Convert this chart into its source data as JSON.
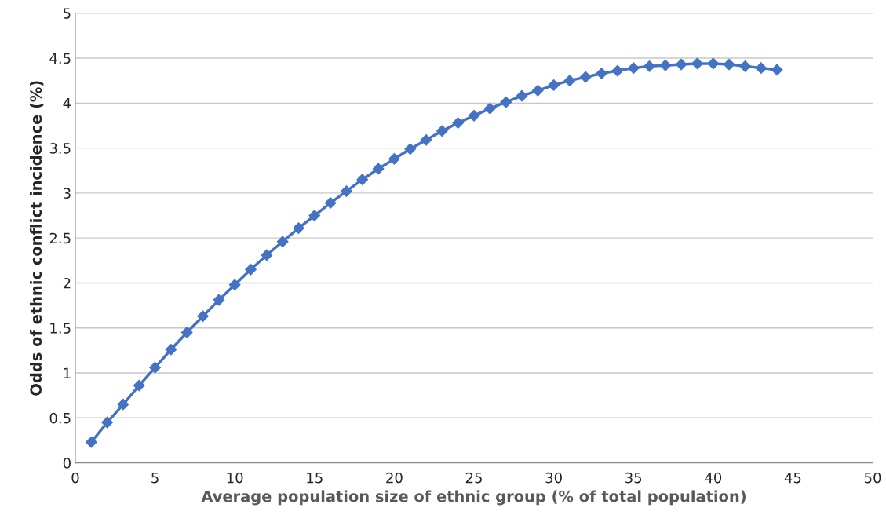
{
  "chart_data": {
    "type": "line",
    "xlabel": "Average population size of ethnic group (% of total population)",
    "ylabel": "Odds of ethnic conflict incidence (%)",
    "x": [
      1,
      2,
      3,
      4,
      5,
      6,
      7,
      8,
      9,
      10,
      11,
      12,
      13,
      14,
      15,
      16,
      17,
      18,
      19,
      20,
      21,
      22,
      23,
      24,
      25,
      26,
      27,
      28,
      29,
      30,
      31,
      32,
      33,
      34,
      35,
      36,
      37,
      38,
      39,
      40,
      41,
      42,
      43,
      44
    ],
    "series": [
      {
        "color": "#4472c4",
        "values": [
          0.23,
          0.45,
          0.65,
          0.86,
          1.06,
          1.26,
          1.45,
          1.63,
          1.81,
          1.98,
          2.15,
          2.31,
          2.46,
          2.61,
          2.75,
          2.89,
          3.02,
          3.15,
          3.27,
          3.38,
          3.49,
          3.59,
          3.69,
          3.78,
          3.86,
          3.94,
          4.01,
          4.08,
          4.14,
          4.2,
          4.25,
          4.29,
          4.33,
          4.36,
          4.39,
          4.41,
          4.42,
          4.43,
          4.44,
          4.44,
          4.43,
          4.41,
          4.39,
          4.37
        ]
      }
    ],
    "xlim": [
      0,
      50
    ],
    "xticks": [
      0,
      5,
      10,
      15,
      20,
      25,
      30,
      35,
      40,
      45,
      50
    ],
    "ylim": [
      0,
      5
    ],
    "yticks": [
      0,
      0.5,
      1,
      1.5,
      2,
      2.5,
      3,
      3.5,
      4,
      4.5,
      5
    ],
    "grid": "y",
    "marker": "diamond",
    "line_style": "solid"
  }
}
